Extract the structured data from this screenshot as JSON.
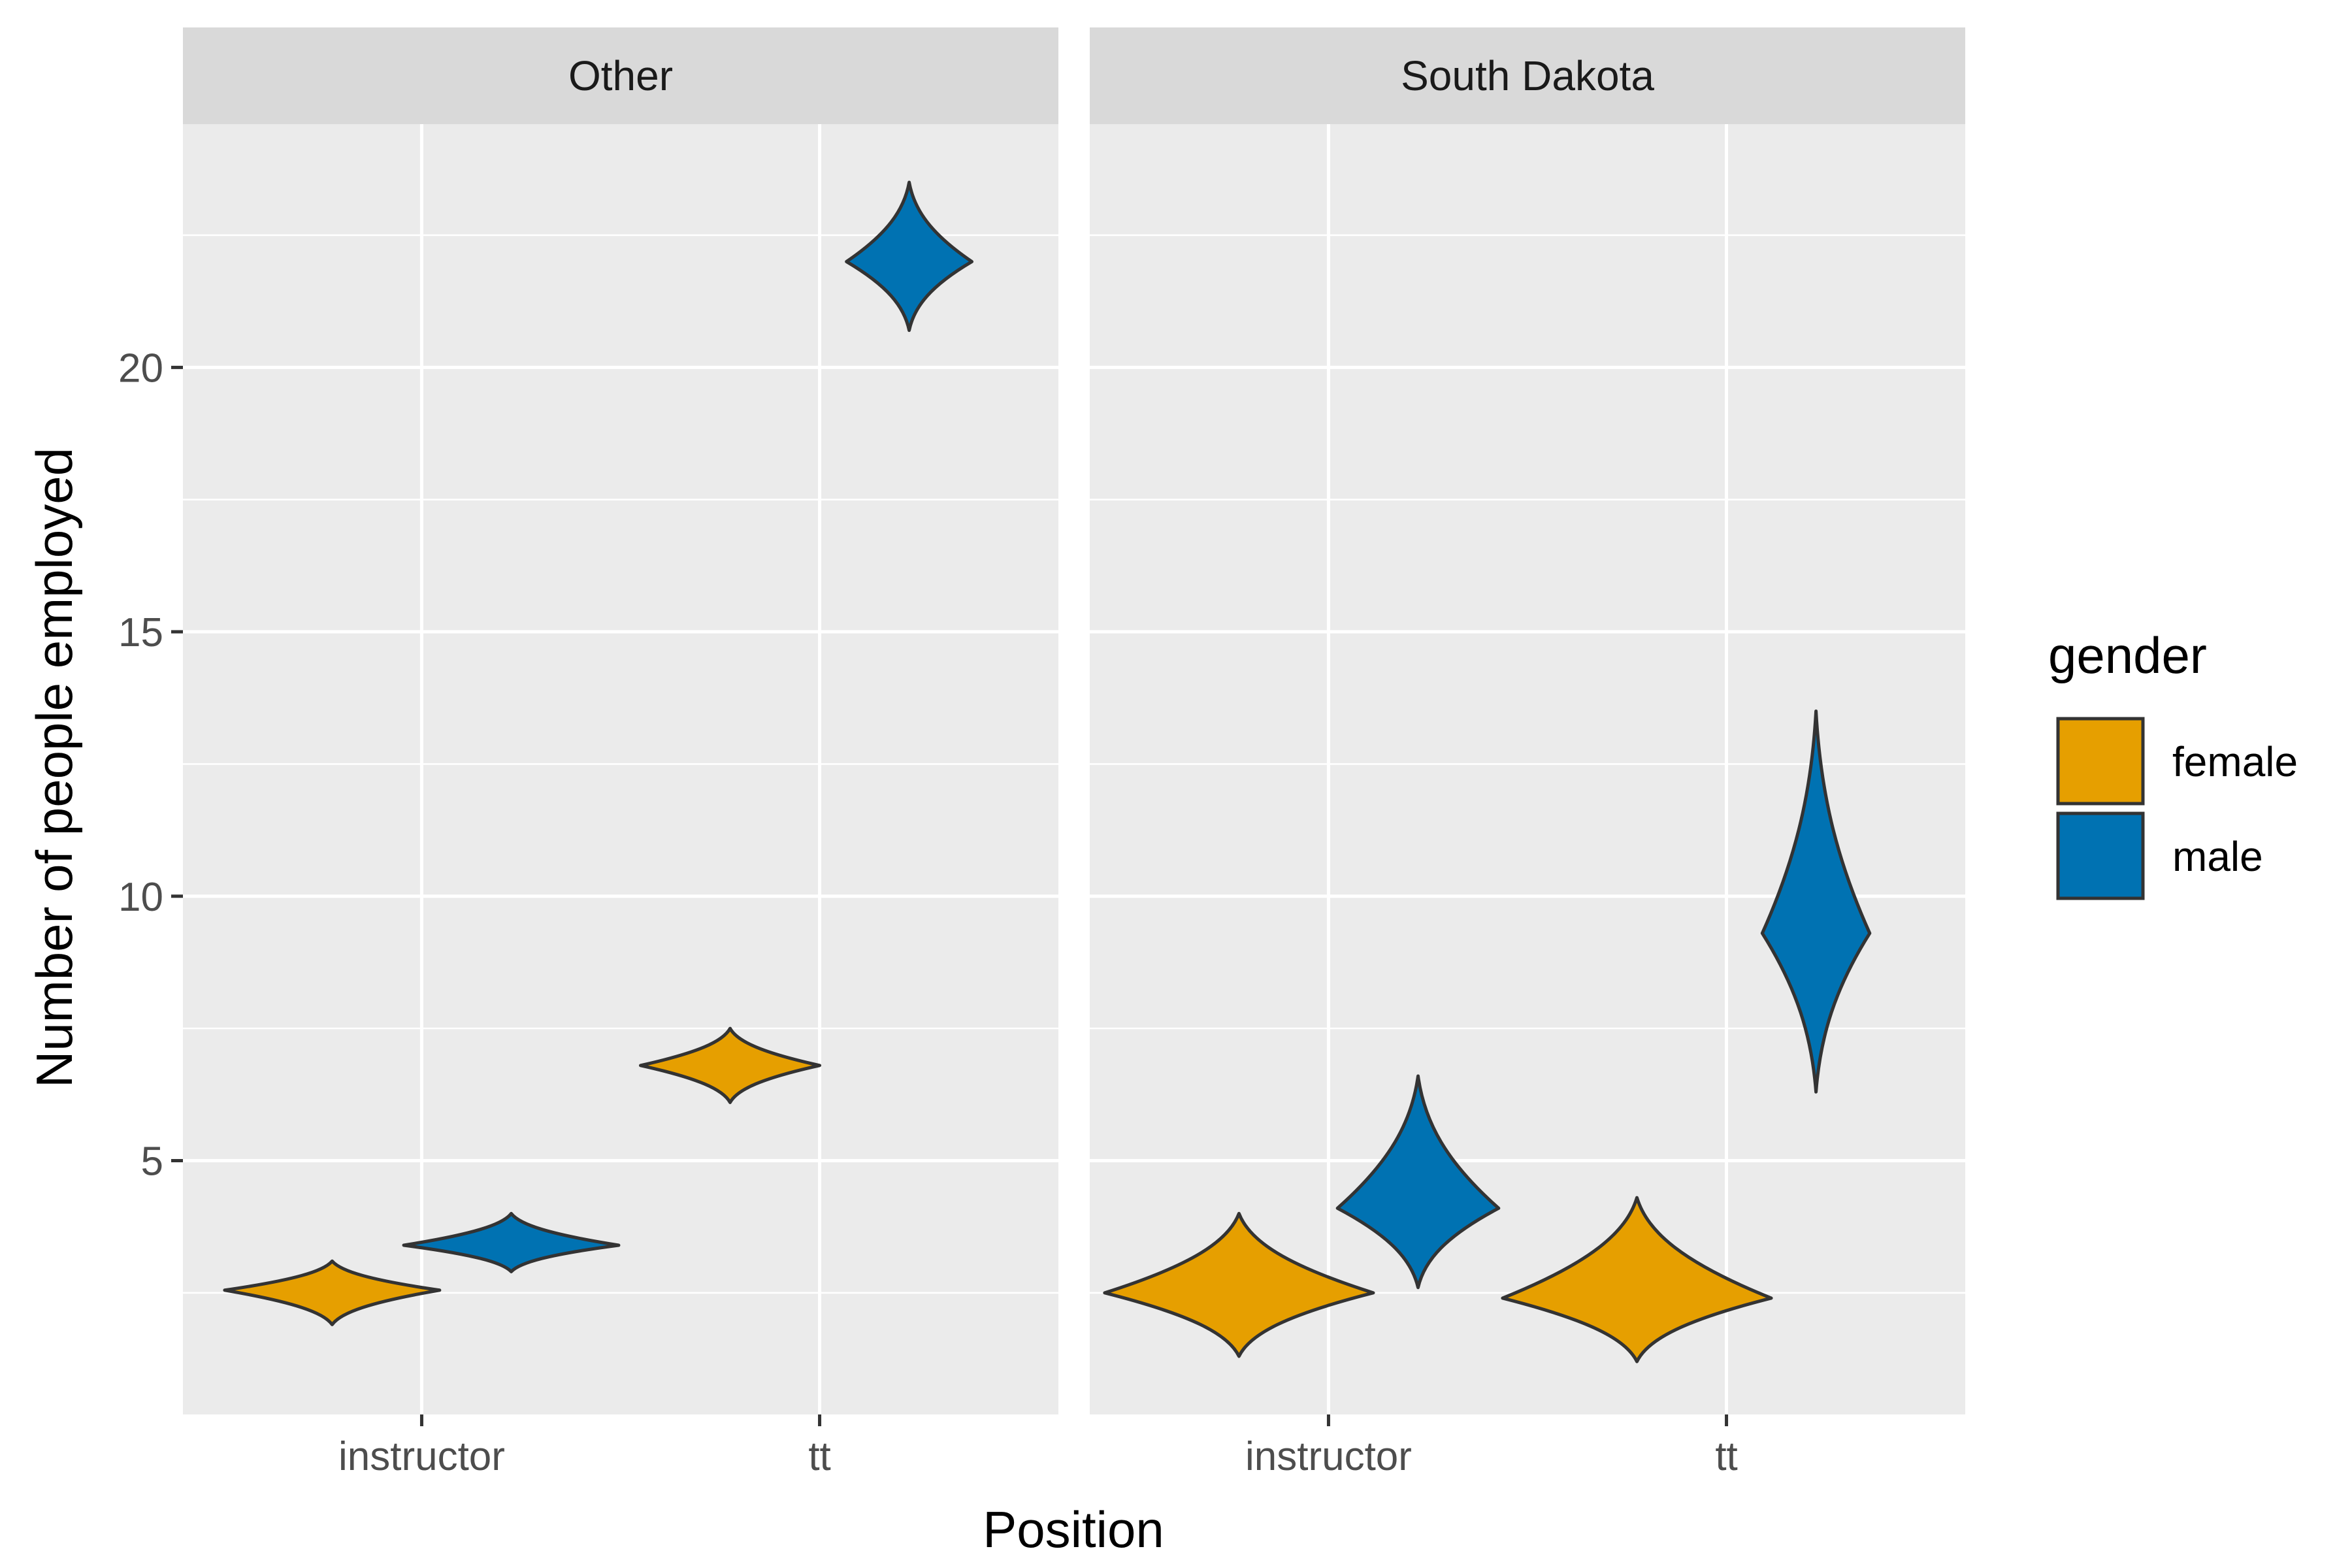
{
  "chart_data": {
    "type": "violin",
    "xlabel": "Position",
    "ylabel": "Number of people employed",
    "facets": [
      "Other",
      "South Dakota"
    ],
    "categories": [
      "instructor",
      "tt"
    ],
    "ylim": [
      0.2,
      24.6
    ],
    "y_ticks": [
      5,
      10,
      15,
      20
    ],
    "y_tick_labels": [
      "5",
      "10",
      "15",
      "20"
    ],
    "grid": true,
    "legend": {
      "title": "gender",
      "position": "right",
      "entries": [
        {
          "label": "female",
          "color": "#E69F00"
        },
        {
          "label": "male",
          "color": "#0072B2"
        }
      ]
    },
    "series": [
      {
        "name": "female",
        "color": "#E69F00"
      },
      {
        "name": "male",
        "color": "#0072B2"
      }
    ],
    "violins": [
      {
        "facet": "Other",
        "category": "instructor",
        "gender": "female",
        "min": 1.9,
        "max": 3.1,
        "center": 2.55,
        "width": 0.6
      },
      {
        "facet": "Other",
        "category": "instructor",
        "gender": "male",
        "min": 2.9,
        "max": 4.0,
        "center": 3.4,
        "width": 0.6
      },
      {
        "facet": "Other",
        "category": "tt",
        "gender": "female",
        "min": 6.1,
        "max": 7.5,
        "center": 6.8,
        "width": 0.5
      },
      {
        "facet": "Other",
        "category": "tt",
        "gender": "male",
        "min": 20.7,
        "max": 23.5,
        "center": 22.0,
        "width": 0.35
      },
      {
        "facet": "South Dakota",
        "category": "instructor",
        "gender": "female",
        "min": 1.3,
        "max": 4.0,
        "center": 2.5,
        "width": 0.75
      },
      {
        "facet": "South Dakota",
        "category": "instructor",
        "gender": "male",
        "min": 2.6,
        "max": 6.6,
        "center": 4.1,
        "width": 0.45
      },
      {
        "facet": "South Dakota",
        "category": "tt",
        "gender": "female",
        "min": 1.2,
        "max": 4.3,
        "center": 2.4,
        "width": 0.75
      },
      {
        "facet": "South Dakota",
        "category": "tt",
        "gender": "male",
        "min": 6.3,
        "max": 13.5,
        "center": 9.3,
        "width": 0.3
      }
    ]
  }
}
